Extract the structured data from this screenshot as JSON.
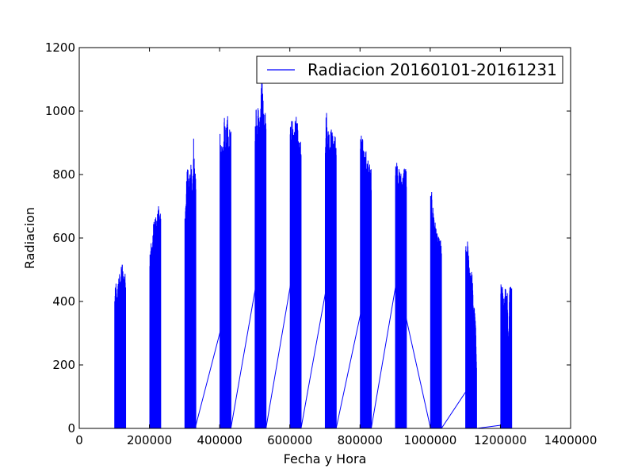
{
  "chart_data": {
    "type": "line",
    "title": "",
    "xlabel": "Fecha y Hora",
    "ylabel": "Radiacion",
    "xlim": [
      0,
      1400000
    ],
    "ylim": [
      0,
      1200
    ],
    "xticks": [
      {
        "value": 0,
        "label": "0"
      },
      {
        "value": 200000,
        "label": "200000"
      },
      {
        "value": 400000,
        "label": "400000"
      },
      {
        "value": 600000,
        "label": "600000"
      },
      {
        "value": 800000,
        "label": "800000"
      },
      {
        "value": 1000000,
        "label": "1000000"
      },
      {
        "value": 1200000,
        "label": "1200000"
      },
      {
        "value": 1400000,
        "label": "1400000"
      }
    ],
    "yticks": [
      {
        "value": 0,
        "label": "0"
      },
      {
        "value": 200,
        "label": "200"
      },
      {
        "value": 400,
        "label": "400"
      },
      {
        "value": 600,
        "label": "600"
      },
      {
        "value": 800,
        "label": "800"
      },
      {
        "value": 1000,
        "label": "1000"
      },
      {
        "value": 1200,
        "label": "1200"
      }
    ],
    "grid": false,
    "legend_position": "top-right",
    "series": [
      {
        "name": "Radiacion 20160101-20161231",
        "color": "#0000ff",
        "blocks": [
          {
            "x_start": 101000,
            "x_end": 132000,
            "peaks": [
              415,
              470,
              420,
              455,
              500,
              470,
              510,
              525,
              480,
              500,
              480
            ]
          },
          {
            "x_start": 201000,
            "x_end": 232000,
            "peaks": [
              560,
              600,
              570,
              640,
              660,
              675,
              655,
              680,
              710,
              690,
              670
            ]
          },
          {
            "x_start": 301000,
            "x_end": 332000,
            "peaks": [
              710,
              725,
              845,
              840,
              790,
              830,
              850,
              770,
              920,
              800,
              810
            ]
          },
          {
            "x_start": 401000,
            "x_end": 432000,
            "peaks": [
              945,
              890,
              930,
              900,
              985,
              940,
              960,
              985,
              900,
              960,
              940
            ]
          },
          {
            "x_start": 501000,
            "x_end": 532000,
            "peaks": [
              950,
              1025,
              910,
              1095,
              980,
              1000,
              1180,
              1100,
              970,
              1000,
              990
            ]
          },
          {
            "x_start": 601000,
            "x_end": 632000,
            "peaks": [
              975,
              985,
              970,
              920,
              960,
              995,
              970,
              960,
              900,
              940,
              930
            ]
          },
          {
            "x_start": 701000,
            "x_end": 732000,
            "peaks": [
              955,
              1015,
              940,
              960,
              935,
              945,
              950,
              920,
              940,
              930,
              925
            ]
          },
          {
            "x_start": 801000,
            "x_end": 832000,
            "peaks": [
              930,
              925,
              915,
              895,
              870,
              880,
              860,
              850,
              840,
              830,
              820
            ]
          },
          {
            "x_start": 901000,
            "x_end": 932000,
            "peaks": [
              885,
              860,
              830,
              820,
              815,
              810,
              805,
              800,
              835,
              830,
              820
            ]
          },
          {
            "x_start": 1001000,
            "x_end": 1032000,
            "peaks": [
              740,
              745,
              705,
              690,
              655,
              640,
              615,
              605,
              600,
              595,
              590
            ]
          },
          {
            "x_start": 1101000,
            "x_end": 1132000,
            "peaks": [
              580,
              560,
              605,
              520,
              510,
              500,
              490,
              400,
              380,
              340,
              210
            ]
          },
          {
            "x_start": 1201000,
            "x_end": 1232000,
            "peaks": [
              465,
              455,
              440,
              380,
              445,
              440,
              435,
              240,
              455,
              465,
              460
            ]
          }
        ],
        "connectors": [
          [
            [
              132000,
              0
            ],
            [
              201000,
              0
            ]
          ],
          [
            [
              203000,
              10
            ],
            [
              225000,
              0
            ]
          ],
          [
            [
              232000,
              0
            ],
            [
              301000,
              0
            ]
          ],
          [
            [
              305000,
              130
            ],
            [
              330000,
              0
            ]
          ],
          [
            [
              330000,
              0
            ],
            [
              405000,
              320
            ]
          ],
          [
            [
              407000,
              0
            ],
            [
              432000,
              0
            ]
          ],
          [
            [
              432000,
              0
            ],
            [
              508000,
              480
            ]
          ],
          [
            [
              508000,
              0
            ],
            [
              532000,
              0
            ]
          ],
          [
            [
              532000,
              0
            ],
            [
              610000,
              505
            ]
          ],
          [
            [
              610000,
              10
            ],
            [
              625000,
              10
            ]
          ],
          [
            [
              632000,
              0
            ],
            [
              710000,
              480
            ]
          ],
          [
            [
              710000,
              0
            ],
            [
              732000,
              0
            ]
          ],
          [
            [
              732000,
              0
            ],
            [
              810000,
              405
            ]
          ],
          [
            [
              810000,
              0
            ],
            [
              832000,
              0
            ]
          ],
          [
            [
              832000,
              0
            ],
            [
              908000,
              490
            ]
          ],
          [
            [
              910000,
              455
            ],
            [
              1001000,
              0
            ]
          ],
          [
            [
              1032000,
              0
            ],
            [
              1110000,
              130
            ]
          ],
          [
            [
              1110000,
              0
            ],
            [
              1132000,
              0
            ]
          ],
          [
            [
              1132000,
              0
            ],
            [
              1201000,
              10
            ]
          ],
          [
            [
              1203000,
              0
            ],
            [
              1232000,
              0
            ]
          ]
        ]
      }
    ]
  }
}
